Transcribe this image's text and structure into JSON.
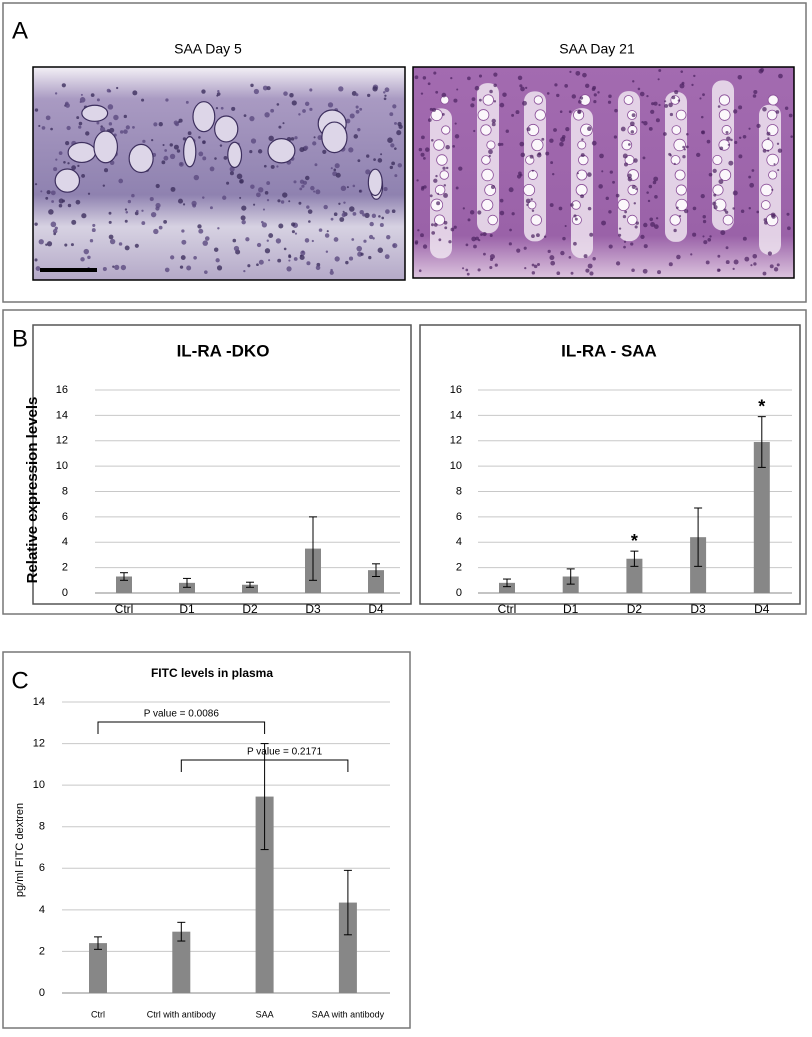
{
  "panels": {
    "labels": [
      "A",
      "B",
      "C"
    ],
    "images": [
      "SAA Day 5",
      "SAA Day 21"
    ]
  },
  "chart_data": [
    {
      "type": "bar",
      "title": "IL-RA  -DKO",
      "y_label": "Relative expression levels",
      "categories": [
        "Ctrl",
        "D1",
        "D2",
        "D3",
        "D4"
      ],
      "values": [
        1.3,
        0.8,
        0.65,
        3.5,
        1.8
      ],
      "errors": [
        0.3,
        0.35,
        0.2,
        2.5,
        0.5
      ],
      "color": "#878787",
      "ylim": [
        0,
        16
      ],
      "yticks": [
        0,
        2,
        4,
        6,
        8,
        10,
        12,
        14,
        16
      ],
      "grid": true
    },
    {
      "type": "bar",
      "title": "IL-RA - SAA",
      "categories": [
        "Ctrl",
        "D1",
        "D2",
        "D3",
        "D4"
      ],
      "values": [
        0.8,
        1.3,
        2.7,
        4.4,
        11.9
      ],
      "errors": [
        0.3,
        0.6,
        0.6,
        2.3,
        2.0
      ],
      "significance": [
        null,
        null,
        "*",
        null,
        "*"
      ],
      "color": "#878787",
      "ylim": [
        0,
        16
      ],
      "yticks": [
        0,
        2,
        4,
        6,
        8,
        10,
        12,
        14,
        16
      ],
      "grid": true
    },
    {
      "type": "bar",
      "title": "FITC levels in plasma",
      "y_label": "pg/ml FITC dextren",
      "categories": [
        "Ctrl",
        "Ctrl with antibody",
        "SAA",
        "SAA with antibody"
      ],
      "values": [
        2.4,
        2.95,
        9.45,
        4.35
      ],
      "errors": [
        0.3,
        0.45,
        2.55,
        1.55
      ],
      "comparisons": [
        {
          "label": "P value = 0.0086",
          "from": "Ctrl",
          "to": "SAA"
        },
        {
          "label": "P value = 0.2171",
          "from": "Ctrl with antibody",
          "to": "SAA with antibody"
        }
      ],
      "color": "#878787",
      "ylim": [
        0,
        14
      ],
      "yticks": [
        0,
        2,
        4,
        6,
        8,
        10,
        12,
        14
      ],
      "grid": true
    }
  ]
}
